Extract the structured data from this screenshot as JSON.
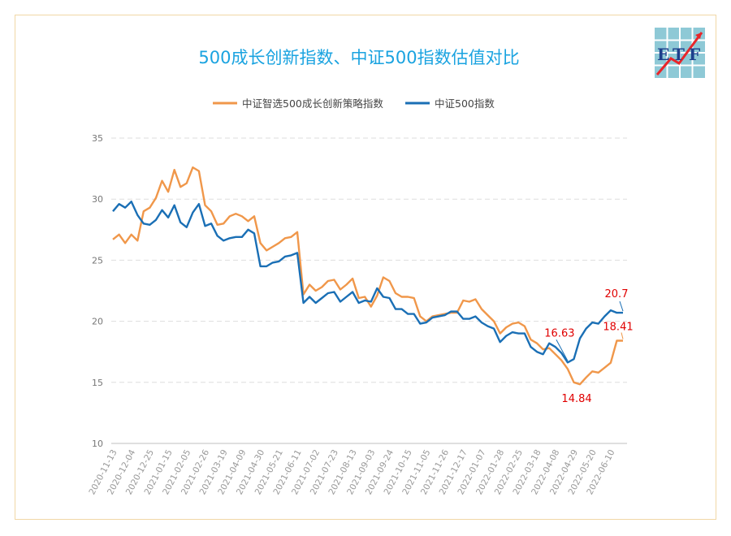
{
  "logo": {
    "text": "ETF"
  },
  "colors": {
    "orange": "#f0974a",
    "blue": "#1a6fb5",
    "red": "#e00000",
    "title": "#1aa3e0",
    "grid": "#d9d9d9"
  },
  "chart_data": {
    "type": "line",
    "title": "500成长创新指数、中证500指数估值对比",
    "xlabel": "",
    "ylabel": "",
    "ylim": [
      10,
      35
    ],
    "yticks": [
      10,
      15,
      20,
      25,
      30,
      35
    ],
    "grid": true,
    "legend_position": "top",
    "x_tick_labels": [
      "2020-11-13",
      "2020-12-04",
      "2020-12-25",
      "2021-01-15",
      "2021-02-05",
      "2021-02-26",
      "2021-03-19",
      "2021-04-09",
      "2021-04-30",
      "2021-05-21",
      "2021-06-11",
      "2021-07-02",
      "2021-07-23",
      "2021-08-13",
      "2021-09-03",
      "2021-09-24",
      "2021-10-15",
      "2021-11-05",
      "2021-11-26",
      "2021-12-17",
      "2022-01-07",
      "2022-01-28",
      "2022-02-25",
      "2022-03-18",
      "2022-04-08",
      "2022-04-29",
      "2022-05-20",
      "2022-06-10"
    ],
    "series": [
      {
        "name": "中证智选500成长创新策略指数",
        "color": "#f0974a",
        "values": [
          26.7,
          27.1,
          26.4,
          27.1,
          26.6,
          29.0,
          29.3,
          30.1,
          31.5,
          30.6,
          32.4,
          31.0,
          31.3,
          32.6,
          32.3,
          29.5,
          29.0,
          27.9,
          28.0,
          28.6,
          28.8,
          28.6,
          28.2,
          28.6,
          26.4,
          25.8,
          26.1,
          26.4,
          26.8,
          26.9,
          27.3,
          22.2,
          23.0,
          22.5,
          22.8,
          23.3,
          23.4,
          22.6,
          23.0,
          23.5,
          21.9,
          22.0,
          21.2,
          22.1,
          23.6,
          23.3,
          22.3,
          22.0,
          22.0,
          21.9,
          20.4,
          20.0,
          20.4,
          20.5,
          20.6,
          20.7,
          20.7,
          21.7,
          21.6,
          21.8,
          21.0,
          20.5,
          20.0,
          19.0,
          19.5,
          19.8,
          19.9,
          19.6,
          18.5,
          18.2,
          17.7,
          17.8,
          17.3,
          16.8,
          16.1,
          15.0,
          14.84,
          15.4,
          15.9,
          15.8,
          16.2,
          16.6,
          18.41,
          18.41
        ],
        "labels": [
          {
            "value": "14.84"
          },
          {
            "value": "18.41"
          }
        ]
      },
      {
        "name": "中证500指数",
        "color": "#1a6fb5",
        "values": [
          29.0,
          29.6,
          29.3,
          29.8,
          28.7,
          28.0,
          27.9,
          28.3,
          29.1,
          28.5,
          29.5,
          28.1,
          27.7,
          28.9,
          29.6,
          27.8,
          28.0,
          27.0,
          26.6,
          26.8,
          26.9,
          26.9,
          27.5,
          27.2,
          24.5,
          24.5,
          24.8,
          24.9,
          25.3,
          25.4,
          25.6,
          21.5,
          22.0,
          21.5,
          21.9,
          22.3,
          22.4,
          21.6,
          22.0,
          22.4,
          21.5,
          21.7,
          21.6,
          22.7,
          22.0,
          21.9,
          21.0,
          21.0,
          20.6,
          20.6,
          19.8,
          19.9,
          20.3,
          20.4,
          20.5,
          20.8,
          20.8,
          20.2,
          20.2,
          20.4,
          19.9,
          19.6,
          19.4,
          18.3,
          18.8,
          19.1,
          19.0,
          19.0,
          17.9,
          17.5,
          17.3,
          18.2,
          17.9,
          17.4,
          16.63,
          16.9,
          18.6,
          19.4,
          19.9,
          19.8,
          20.4,
          20.9,
          20.7,
          20.7
        ],
        "labels": [
          {
            "value": "16.63"
          },
          {
            "value": "20.7"
          }
        ]
      }
    ]
  }
}
